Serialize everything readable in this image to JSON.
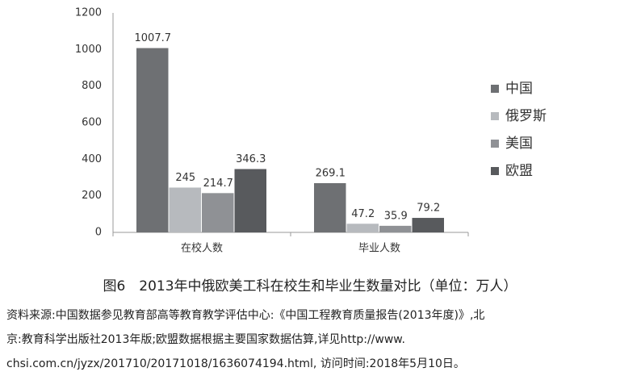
{
  "chart_data": {
    "type": "bar",
    "categories": [
      "在校人数",
      "毕业人数"
    ],
    "series": [
      {
        "name": "中国",
        "color": "#6e7073",
        "values": [
          1007.7,
          269.1
        ]
      },
      {
        "name": "俄罗斯",
        "color": "#b7babe",
        "values": [
          245,
          47.2
        ]
      },
      {
        "name": "美国",
        "color": "#8f9195",
        "values": [
          214.7,
          35.9
        ]
      },
      {
        "name": "欧盟",
        "color": "#585a5d",
        "values": [
          346.3,
          79.2
        ]
      }
    ],
    "ylim": [
      0,
      1200
    ],
    "yticks": [
      0,
      200,
      400,
      600,
      800,
      1000,
      1200
    ],
    "grid": false,
    "legend": "right"
  },
  "caption": "图6　2013年中俄欧美工科在校生和毕业生数量对比（单位：万人）",
  "source": {
    "lines": [
      "资料来源:中国数据参见教育部高等教育教学评估中心:《中国工程教育质量报告(2013年度)》,北",
      "京:教育科学出版社2013年版;欧盟数据根据主要国家数据估算,详见http://www.",
      "chsi.com.cn/jyzx/201710/20171018/1636074194.html, 访问时间:2018年5月10日。"
    ]
  }
}
